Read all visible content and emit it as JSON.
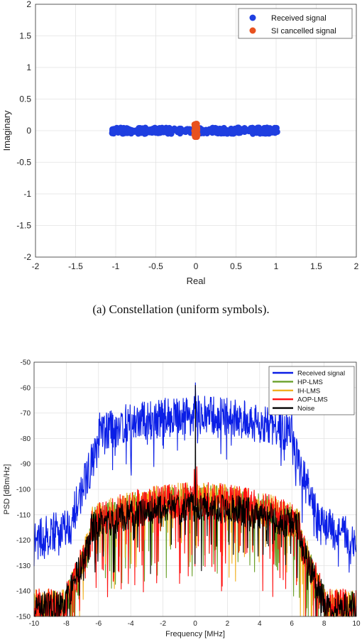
{
  "chart_data": [
    {
      "type": "scatter",
      "caption": "(a)  Constellation (uniform symbols).",
      "xlabel": "Real",
      "ylabel": "Imaginary",
      "xlim": [
        -2,
        2
      ],
      "ylim": [
        -2,
        2
      ],
      "xticks": [
        "-2",
        "-1.5",
        "-1",
        "-0.5",
        "0",
        "0.5",
        "1",
        "1.5",
        "2"
      ],
      "yticks": [
        "2",
        "1.5",
        "1",
        "0.5",
        "0",
        "-0.5",
        "-1",
        "-1.5",
        "-2"
      ],
      "grid": true,
      "legend_position": "top-right",
      "series": [
        {
          "name": "Received signal",
          "color": "#1f3fe0",
          "real_range": [
            -1.05,
            1.02
          ],
          "imag_range": [
            -0.05,
            0.05
          ]
        },
        {
          "name": "SI cancelled signal",
          "color": "#e8521f",
          "real_range": [
            -0.02,
            0.02
          ],
          "imag_range": [
            -0.1,
            0.12
          ]
        }
      ]
    },
    {
      "type": "line",
      "xlabel": "Frequency [MHz]",
      "ylabel": "PSD [dBm/Hz]",
      "xlim": [
        -10,
        10
      ],
      "ylim": [
        -150,
        -50
      ],
      "xticks": [
        "-10",
        "-8",
        "-6",
        "-4",
        "-2",
        "0",
        "2",
        "4",
        "6",
        "8",
        "10"
      ],
      "yticks": [
        "-50",
        "-60",
        "-70",
        "-80",
        "-90",
        "-100",
        "-110",
        "-120",
        "-130",
        "-140",
        "-150"
      ],
      "grid": true,
      "legend_position": "top-right",
      "series": [
        {
          "name": "Received signal",
          "color": "#0a1ee6"
        },
        {
          "name": "HP-LMS",
          "color": "#6aa02a"
        },
        {
          "name": "IH-LMS",
          "color": "#f0b020"
        },
        {
          "name": "AOP-LMS",
          "color": "#ff1010"
        },
        {
          "name": "Noise",
          "color": "#000000"
        }
      ]
    }
  ]
}
